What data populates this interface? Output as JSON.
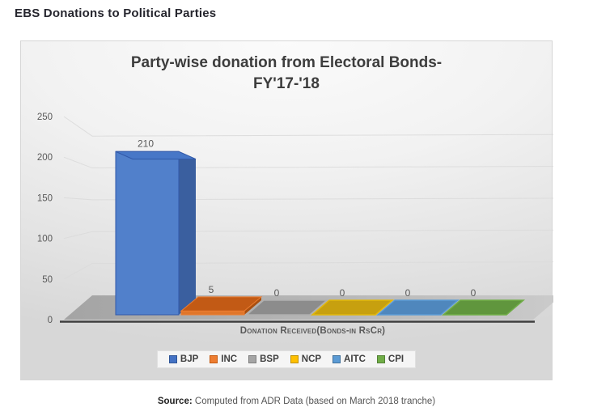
{
  "page": {
    "heading": "EBS Donations to Political Parties",
    "source_label": "Source:",
    "source_text": " Computed from ADR Data (based on March 2018 tranche)"
  },
  "chart_data": {
    "type": "bar",
    "style": "3d-column",
    "title_line1": "Party-wise donation from Electoral Bonds-",
    "title_line2": "FY'17-'18",
    "xlabel": "Donation Received(Bonds-in RsCr)",
    "ylabel": "",
    "categories": [
      "BJP",
      "INC",
      "BSP",
      "NCP",
      "AITC",
      "CPI"
    ],
    "values": [
      210,
      5,
      0,
      0,
      0,
      0
    ],
    "data_labels": [
      "210",
      "5",
      "0",
      "0",
      "0",
      "0"
    ],
    "ylim": [
      0,
      250
    ],
    "yticks": [
      0,
      50,
      100,
      150,
      200,
      250
    ],
    "grid": true,
    "grid_color": "#dadada",
    "legend_position": "bottom",
    "axis_color": "#3f3f3f",
    "tick_label_color": "#595959",
    "floor_colors": [
      "#a4a4a4",
      "#b9b9b9",
      "#cbcbcb"
    ],
    "series_style": [
      {
        "name": "BJP",
        "legend": "#4472C4",
        "legend_edge": "#2F5597",
        "front": "#5180CB",
        "top": "#4777C7",
        "side": "#3A5F9F",
        "edge": "#3158A8"
      },
      {
        "name": "INC",
        "legend": "#ED7D31",
        "legend_edge": "#C55A11",
        "front": "#E0762B",
        "top": "#C25A15",
        "side": "#A94F10",
        "edge": "#ED7D31"
      },
      {
        "name": "BSP",
        "legend": "#A5A5A5",
        "legend_edge": "#7F7F7F",
        "front": "#9A9A9A",
        "top": "#8C8C8C",
        "side": "#7E7E7E",
        "edge": "#AFAFAF"
      },
      {
        "name": "NCP",
        "legend": "#FFC000",
        "legend_edge": "#BF9000",
        "front": "#D9AE0A",
        "top": "#C7A00F",
        "side": "#A8870C",
        "edge": "#E2B70A"
      },
      {
        "name": "AITC",
        "legend": "#5B9BD5",
        "legend_edge": "#41719C",
        "front": "#5590C6",
        "top": "#4F87BD",
        "side": "#3F6E9C",
        "edge": "#5B9BD5"
      },
      {
        "name": "CPI",
        "legend": "#70AD47",
        "legend_edge": "#538135",
        "front": "#67A040",
        "top": "#60963D",
        "side": "#4F7B32",
        "edge": "#70AD47"
      }
    ]
  }
}
